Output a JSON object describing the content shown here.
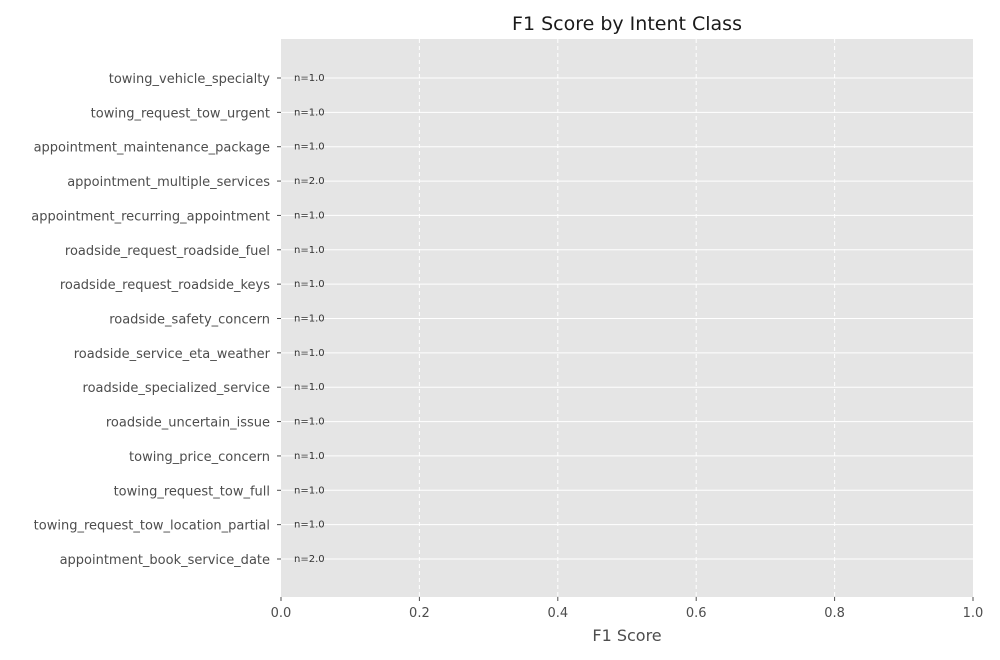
{
  "chart_data": {
    "type": "bar",
    "orientation": "horizontal",
    "title": "F1 Score by Intent Class",
    "xlabel": "F1 Score",
    "ylabel": "",
    "xlim": [
      0,
      1.0
    ],
    "xticks": [
      "0.0",
      "0.2",
      "0.4",
      "0.6",
      "0.8",
      "1.0"
    ],
    "grid": true,
    "categories": [
      "towing_vehicle_specialty",
      "towing_request_tow_urgent",
      "appointment_maintenance_package",
      "appointment_multiple_services",
      "appointment_recurring_appointment",
      "roadside_request_roadside_fuel",
      "roadside_request_roadside_keys",
      "roadside_safety_concern",
      "roadside_service_eta_weather",
      "roadside_specialized_service",
      "roadside_uncertain_issue",
      "towing_price_concern",
      "towing_request_tow_full",
      "towing_request_tow_location_partial",
      "appointment_book_service_date"
    ],
    "values": [
      0,
      0,
      0,
      0,
      0,
      0,
      0,
      0,
      0,
      0,
      0,
      0,
      0,
      0,
      0
    ],
    "annotations": [
      "n=1.0",
      "n=1.0",
      "n=1.0",
      "n=2.0",
      "n=1.0",
      "n=1.0",
      "n=1.0",
      "n=1.0",
      "n=1.0",
      "n=1.0",
      "n=1.0",
      "n=1.0",
      "n=1.0",
      "n=1.0",
      "n=2.0"
    ],
    "colors": {
      "plot_background": "#e5e5e5",
      "grid": "#ffffff",
      "text": "#4d4d4d",
      "bar": "#348abd"
    }
  }
}
